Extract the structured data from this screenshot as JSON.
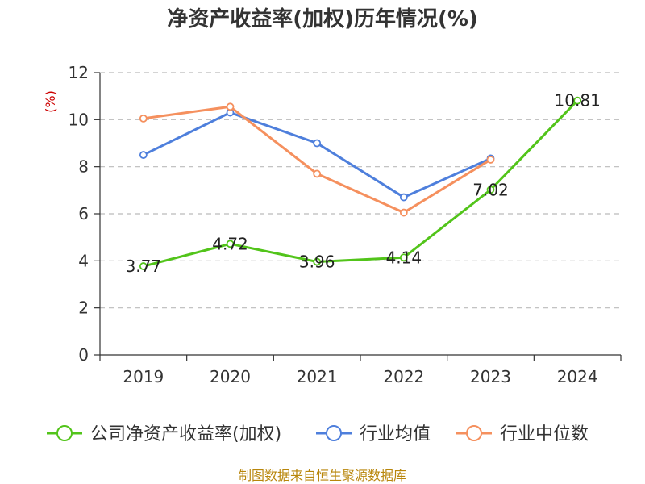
{
  "chart_data": {
    "type": "line",
    "title": "净资产收益率(加权)历年情况(%)",
    "ylabel": "(%)",
    "xlabel": "",
    "ylim": [
      0,
      12
    ],
    "yticks": [
      0,
      2,
      4,
      6,
      8,
      10,
      12
    ],
    "grid": true,
    "legend_position": "bottom",
    "categories": [
      "2019",
      "2020",
      "2021",
      "2022",
      "2023",
      "2024"
    ],
    "series": [
      {
        "name": "公司净资产收益率(加权)",
        "color": "#52c41a",
        "values": [
          3.77,
          4.72,
          3.96,
          4.14,
          7.02,
          10.81
        ],
        "labels": [
          "3.77",
          "4.72",
          "3.96",
          "4.14",
          "7.02",
          "10.81"
        ]
      },
      {
        "name": "行业均值",
        "color": "#4e7fdc",
        "values": [
          8.5,
          10.3,
          9.0,
          6.7,
          8.35,
          null
        ]
      },
      {
        "name": "行业中位数",
        "color": "#f5905e",
        "values": [
          10.05,
          10.55,
          7.7,
          6.05,
          8.3,
          null
        ]
      }
    ],
    "source": "制图数据来自恒生聚源数据库"
  }
}
